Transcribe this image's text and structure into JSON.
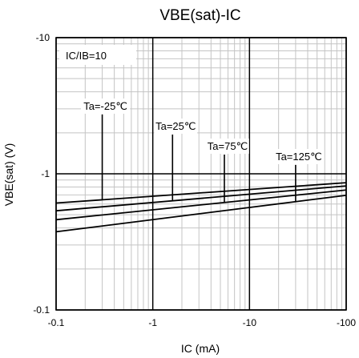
{
  "chart_data": {
    "type": "line",
    "title": "VBE(sat)-IC",
    "xlabel": "IC (mA)",
    "ylabel": "VBE(sat) (V)",
    "x_scale": "log",
    "y_scale": "log",
    "xlim": [
      -0.1,
      -100
    ],
    "ylim": [
      -0.1,
      -10
    ],
    "x_ticks": [
      {
        "value": -0.1,
        "label": "-0.1"
      },
      {
        "value": -1,
        "label": "-1"
      },
      {
        "value": -10,
        "label": "-10"
      },
      {
        "value": -100,
        "label": "-100"
      }
    ],
    "y_ticks": [
      {
        "value": -0.1,
        "label": "-0.1"
      },
      {
        "value": -1,
        "label": "-1"
      },
      {
        "value": -10,
        "label": "-10"
      }
    ],
    "grid": true,
    "condition": "IC/IB=10",
    "series": [
      {
        "name": "Ta=-25℃",
        "x": [
          -0.1,
          -100
        ],
        "y": [
          -0.61,
          -0.86
        ],
        "label_x": -0.3
      },
      {
        "name": "Ta=25℃",
        "x": [
          -0.1,
          -100
        ],
        "y": [
          -0.535,
          -0.815
        ],
        "label_x": -1.6
      },
      {
        "name": "Ta=75℃",
        "x": [
          -0.1,
          -100
        ],
        "y": [
          -0.46,
          -0.76
        ],
        "label_x": -5.5
      },
      {
        "name": "Ta=125℃",
        "x": [
          -0.1,
          -100
        ],
        "y": [
          -0.375,
          -0.695
        ],
        "label_x": -30
      }
    ]
  }
}
